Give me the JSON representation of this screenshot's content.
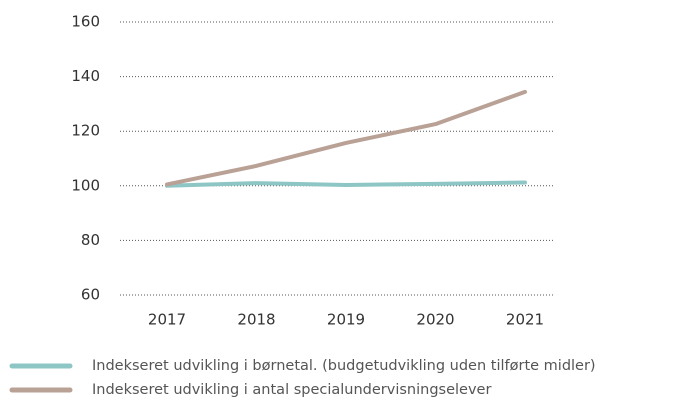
{
  "chart_data": {
    "type": "line",
    "categories": [
      "2017",
      "2018",
      "2019",
      "2020",
      "2021"
    ],
    "series": [
      {
        "name": "Indekseret udvikling i børnetal. (budgetudvikling uden tilførte midler)",
        "color": "#8ec6c5",
        "values": [
          100,
          101,
          100.3,
          100.7,
          101.2
        ]
      },
      {
        "name": "Indekseret udvikling i antal specialundervisningselever",
        "color": "#b9a195",
        "values": [
          100.5,
          107.3,
          115.7,
          122.6,
          134.4
        ]
      }
    ],
    "ylim": [
      60,
      160
    ],
    "yticks": [
      60,
      80,
      100,
      120,
      140,
      160
    ],
    "grid": true,
    "legend": "bottom"
  }
}
